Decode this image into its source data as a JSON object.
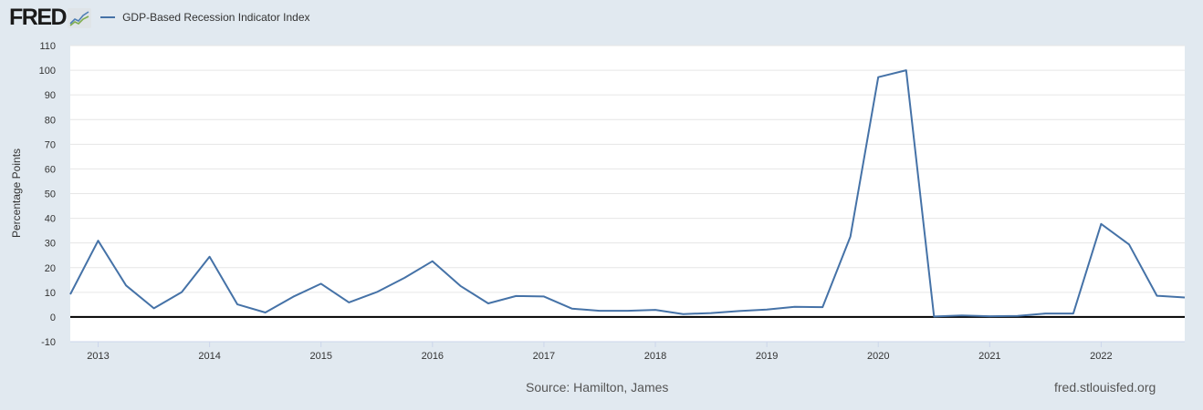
{
  "header": {
    "logo_text": "FRED",
    "logo_icon": "chart-trend-icon",
    "legend": [
      {
        "label": "GDP-Based Recession Indicator Index",
        "color": "#4572a7"
      }
    ]
  },
  "footer": {
    "source": "Source: Hamilton, James",
    "url": "fred.stlouisfed.org"
  },
  "colors": {
    "background": "#e1e9f0",
    "plot_background": "#ffffff",
    "series": "#4572a7",
    "gridline": "#e6e6e6",
    "zero_line": "#000000"
  },
  "chart_data": {
    "type": "line",
    "title": "GDP-Based Recession Indicator Index",
    "xlabel": "",
    "ylabel": "Percentage Points",
    "ylim": [
      -10,
      110
    ],
    "yticks": [
      -10,
      0,
      10,
      20,
      30,
      40,
      50,
      60,
      70,
      80,
      90,
      100,
      110
    ],
    "xtick_labels": [
      "2013",
      "2014",
      "2015",
      "2016",
      "2017",
      "2018",
      "2019",
      "2020",
      "2021",
      "2022"
    ],
    "grid": true,
    "legend_position": "top-left",
    "frequency": "quarterly",
    "x": [
      "2012-Q4",
      "2013-Q1",
      "2013-Q2",
      "2013-Q3",
      "2013-Q4",
      "2014-Q1",
      "2014-Q2",
      "2014-Q3",
      "2014-Q4",
      "2015-Q1",
      "2015-Q2",
      "2015-Q3",
      "2015-Q4",
      "2016-Q1",
      "2016-Q2",
      "2016-Q3",
      "2016-Q4",
      "2017-Q1",
      "2017-Q2",
      "2017-Q3",
      "2017-Q4",
      "2018-Q1",
      "2018-Q2",
      "2018-Q3",
      "2018-Q4",
      "2019-Q1",
      "2019-Q2",
      "2019-Q3",
      "2019-Q4",
      "2020-Q1",
      "2020-Q2",
      "2020-Q3",
      "2020-Q4",
      "2021-Q1",
      "2021-Q2",
      "2021-Q3",
      "2021-Q4",
      "2022-Q1",
      "2022-Q2",
      "2022-Q3",
      "2022-Q4"
    ],
    "series": [
      {
        "name": "GDP-Based Recession Indicator Index",
        "values": [
          9.2,
          30.9,
          12.8,
          3.5,
          10.1,
          24.4,
          5.1,
          1.8,
          8.2,
          13.5,
          5.9,
          10.1,
          15.9,
          22.6,
          12.6,
          5.5,
          8.5,
          8.3,
          3.4,
          2.5,
          2.5,
          2.9,
          1.2,
          1.6,
          2.4,
          3.0,
          4.1,
          4.0,
          32.6,
          97.2,
          100.0,
          0.2,
          0.6,
          0.3,
          0.4,
          1.4,
          1.4,
          37.7,
          29.4,
          8.6,
          7.9
        ]
      }
    ]
  }
}
